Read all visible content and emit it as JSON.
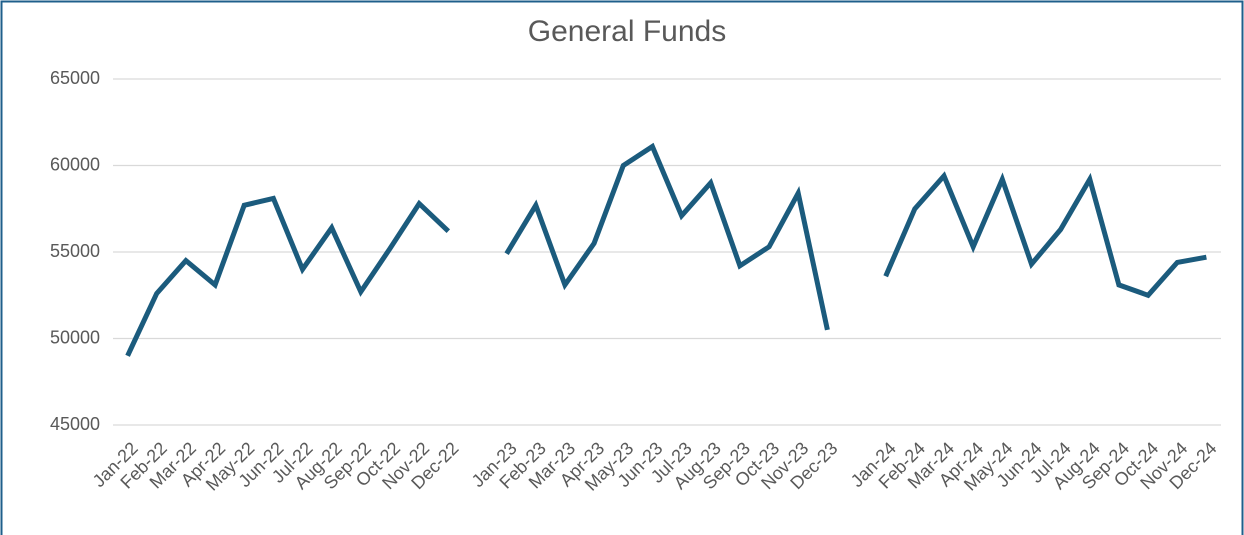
{
  "chart_data": {
    "type": "line",
    "title": "General Funds",
    "categories": [
      "Jan-22",
      "Feb-22",
      "Mar-22",
      "Apr-22",
      "May-22",
      "Jun-22",
      "Jul-22",
      "Aug-22",
      "Sep-22",
      "Oct-22",
      "Nov-22",
      "Dec-22",
      null,
      "Jan-23",
      "Feb-23",
      "Mar-23",
      "Apr-23",
      "May-23",
      "Jun-23",
      "Jul-23",
      "Aug-23",
      "Sep-23",
      "Oct-23",
      "Nov-23",
      "Dec-23",
      null,
      "Jan-24",
      "Feb-24",
      "Mar-24",
      "Apr-24",
      "May-24",
      "Jun-24",
      "Jul-24",
      "Aug-24",
      "Sep-24",
      "Oct-24",
      "Nov-24",
      "Dec-24"
    ],
    "series": [
      {
        "color": "#1b5b7d",
        "values": [
          49000,
          52600,
          54500,
          53100,
          57700,
          58100,
          54000,
          56400,
          52700,
          55200,
          57800,
          56200,
          null,
          54900,
          57700,
          53100,
          55500,
          60000,
          61100,
          57100,
          59000,
          54200,
          55300,
          58400,
          50500,
          null,
          53600,
          57500,
          59400,
          55300,
          59200,
          54300,
          56300,
          59200,
          53100,
          52500,
          54400,
          54700
        ]
      }
    ],
    "ylim": [
      45000,
      65000
    ],
    "yticks": [
      45000,
      50000,
      55000,
      60000,
      65000
    ],
    "grid": true
  }
}
